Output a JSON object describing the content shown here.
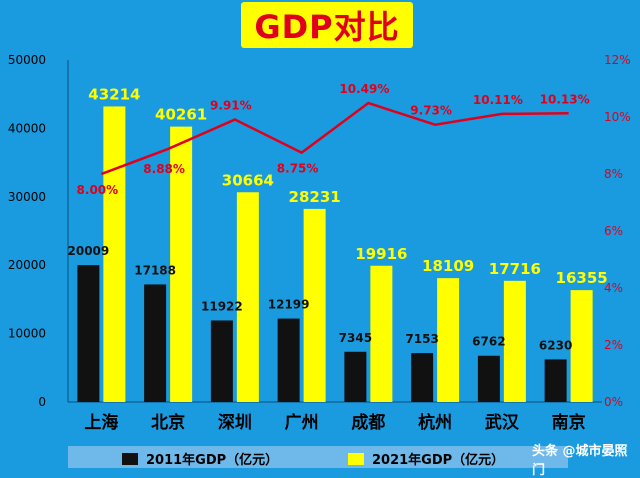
{
  "chart_data": {
    "type": "bar",
    "title": "GDP对比",
    "categories": [
      "上海",
      "北京",
      "深圳",
      "广州",
      "成都",
      "杭州",
      "武汉",
      "南京"
    ],
    "series": [
      {
        "name": "2011年GDP（亿元）",
        "type": "bar",
        "color": "#111111",
        "values": [
          20009,
          17188,
          11922,
          12199,
          7345,
          7153,
          6762,
          6230
        ]
      },
      {
        "name": "2021年GDP（亿元）",
        "type": "bar",
        "color": "#ffff00",
        "values": [
          43214,
          40261,
          30664,
          28231,
          19916,
          18109,
          17716,
          16355
        ]
      },
      {
        "name": "",
        "type": "line",
        "axis": "right",
        "color": "#e0001b",
        "values": [
          8.0,
          8.88,
          9.91,
          8.75,
          10.49,
          9.73,
          10.11,
          10.13
        ],
        "labels": [
          "8.00%",
          "8.88%",
          "9.91%",
          "8.75%",
          "10.49%",
          "9.73%",
          "10.11%",
          "10.13%"
        ]
      }
    ],
    "y_left": {
      "min": 0,
      "max": 50000,
      "ticks": [
        "0",
        "10000",
        "20000",
        "30000",
        "40000",
        "50000"
      ]
    },
    "y_right": {
      "min": 0,
      "max": 12,
      "ticks": [
        "0%",
        "2%",
        "4%",
        "6%",
        "8%",
        "10%",
        "12%"
      ]
    },
    "grid": false,
    "legend_placement": "bottom"
  },
  "legend": {
    "item1": "2011年GDP（亿元）",
    "item2": "2021年GDP（亿元）"
  },
  "watermark": "头条 @城市晏照门",
  "colors": {
    "background": "#1a9be0",
    "bar_2011": "#111111",
    "bar_2021": "#ffff00",
    "line": "#e0001b",
    "label_2021": "#ffff00",
    "label_2011": "#111111"
  }
}
